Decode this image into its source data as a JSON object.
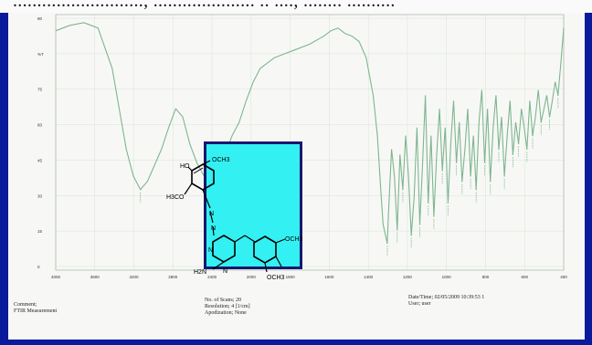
{
  "header_text": "..........................., ..................... .. ...., ........ ..........",
  "chart_data": {
    "type": "line",
    "title": "",
    "xlabel": "",
    "ylabel": "",
    "x_reversed": true,
    "xlim": [
      4000,
      400
    ],
    "ylim": [
      -5,
      90
    ],
    "x_ticks": [
      "4000",
      "3600",
      "3200",
      "2800",
      "2400",
      "2000",
      "1800",
      "1600",
      "1400",
      "1200",
      "1000",
      "800",
      "600",
      "400"
    ],
    "y_ticks": [
      "90",
      "%T",
      "75",
      "60",
      "45",
      "30",
      "15",
      "0"
    ],
    "grid": true,
    "line_color": "#7fb58f",
    "series": [
      {
        "x": [
          4000,
          3900,
          3800,
          3700,
          3600,
          3550,
          3500,
          3450,
          3400,
          3350,
          3300,
          3250,
          3200,
          3150,
          3100,
          3050,
          3000,
          2950,
          2900,
          2850,
          2800,
          2750,
          2700,
          2650,
          2600,
          2550,
          2500,
          2450,
          2400,
          2300,
          2200,
          2100,
          2050,
          2000,
          1950,
          1900,
          1850,
          1800,
          1750,
          1720,
          1700,
          1680,
          1650,
          1640,
          1620,
          1600,
          1580,
          1560,
          1540,
          1520,
          1500,
          1480,
          1460,
          1440,
          1420,
          1400,
          1380,
          1360,
          1340,
          1320,
          1300,
          1280,
          1260,
          1240,
          1220,
          1200,
          1180,
          1160,
          1140,
          1120,
          1100,
          1080,
          1060,
          1040,
          1020,
          1000,
          980,
          960,
          940,
          920,
          900,
          880,
          860,
          840,
          820,
          800,
          780,
          760,
          740,
          720,
          700,
          680,
          660,
          640,
          620,
          600,
          580,
          560,
          540,
          520,
          500,
          480,
          460,
          440,
          420,
          400
        ],
        "y": [
          84,
          86,
          87,
          85,
          70,
          55,
          40,
          30,
          25,
          28,
          34,
          40,
          48,
          55,
          52,
          42,
          35,
          30,
          25,
          30,
          38,
          45,
          50,
          58,
          65,
          70,
          72,
          74,
          75,
          77,
          79,
          82,
          84,
          85,
          83,
          82,
          80,
          74,
          60,
          45,
          28,
          12,
          5,
          18,
          40,
          30,
          10,
          38,
          25,
          45,
          30,
          8,
          22,
          48,
          12,
          35,
          60,
          20,
          45,
          15,
          38,
          55,
          32,
          48,
          20,
          42,
          58,
          35,
          50,
          28,
          40,
          55,
          30,
          45,
          25,
          50,
          62,
          35,
          55,
          28,
          48,
          60,
          40,
          52,
          30,
          45,
          58,
          38,
          50,
          42,
          55,
          48,
          40,
          58,
          45,
          52,
          62,
          50,
          55,
          60,
          52,
          58,
          65,
          60,
          72,
          85
        ]
      }
    ],
    "annotations": [
      "HO",
      "OCH3",
      "H3CO",
      "N",
      "N",
      "N",
      "OCH3",
      "H2N",
      "N",
      "OCH3"
    ]
  },
  "footer": {
    "logo_label": "FTIR Measurement",
    "comment_label": "Comment;",
    "comment_value": "FTIR Measurement",
    "scans": "No. of Scans; 20",
    "resolution": "Resolution; 4 [1/cm]",
    "apodization": "Apodization; None",
    "datetime": "Date/Time; 02/05/2009 10:39:53 1",
    "user": "User; user"
  },
  "colors": {
    "frame": "#0a1a9c",
    "paper": "#f7f8f5",
    "inset_bg": "#33f0f2",
    "inset_border": "#16186e"
  }
}
